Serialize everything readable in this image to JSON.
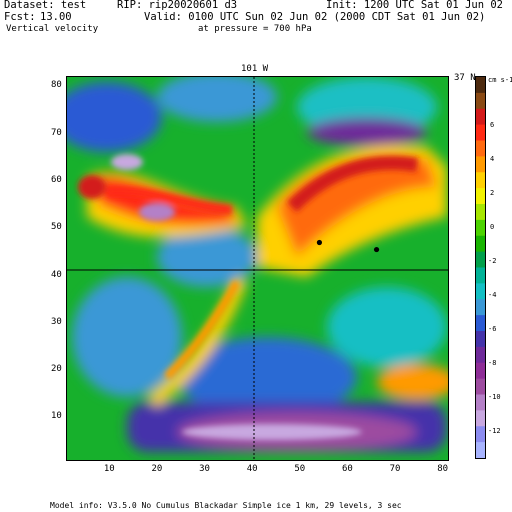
{
  "header": {
    "dataset": "Dataset: test",
    "rip": "RIP: rip20020601 d3",
    "init": "Init: 1200 UTC Sat 01 Jun 02",
    "fcst": "Fcst:",
    "fcst_val": "13.00",
    "valid": "Valid: 0100 UTC Sun 02 Jun 02 (2000 CDT Sat 01 Jun 02)",
    "field": "Vertical velocity",
    "level": "at pressure = 700 hPa"
  },
  "map": {
    "longitude_label": "101 W",
    "latitude_label": "37 N",
    "x_ticks": [
      "10",
      "20",
      "30",
      "40",
      "50",
      "60",
      "70",
      "80"
    ],
    "y_ticks": [
      "10",
      "20",
      "30",
      "40",
      "50",
      "60",
      "70",
      "80"
    ],
    "xlim": [
      1,
      81
    ],
    "ylim": [
      1,
      82
    ],
    "meridian_x": 40,
    "parallel_y": 41.5,
    "markers": [
      [
        54,
        47
      ],
      [
        66,
        45.5
      ]
    ]
  },
  "colorbar": {
    "units": "cm s-1",
    "labels": [
      "6",
      "4",
      "2",
      "0",
      "-2",
      "-4",
      "-6",
      "-8",
      "-10",
      "-12"
    ],
    "colors": [
      "#4d2a0f",
      "#8a4a14",
      "#d31a1a",
      "#ff2a14",
      "#ff6a10",
      "#ff9a00",
      "#ffd000",
      "#f2f200",
      "#a6e600",
      "#4cd300",
      "#18b400",
      "#00a04a",
      "#00b296",
      "#13bfc4",
      "#3a98d6",
      "#2a5ad4",
      "#4433aa",
      "#6e2a9a",
      "#8e2d97",
      "#9d4ca0",
      "#b480c7",
      "#c8a8e0",
      "#8c8cf0",
      "#a8b4ff"
    ]
  },
  "footer": {
    "model_info": "Model info: V3.5.0 No Cumulus Blackadar Simple ice 1 km, 29 levels, 3 sec"
  }
}
